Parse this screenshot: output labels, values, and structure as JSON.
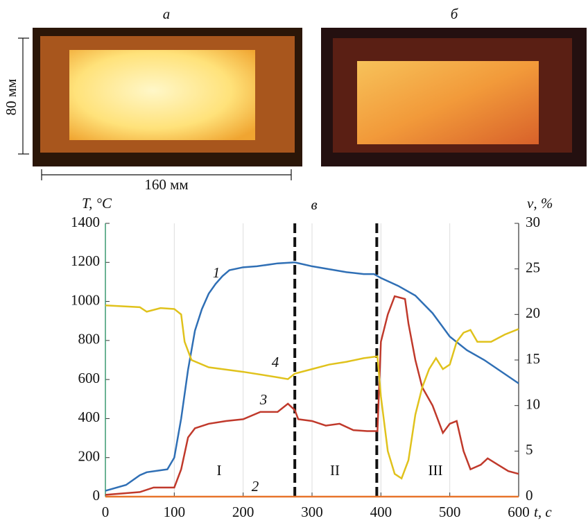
{
  "figure": {
    "panel_labels": [
      "а",
      "б"
    ],
    "dimension_labels": [
      "80 мм",
      "160 мм"
    ]
  },
  "chart_data": {
    "type": "line",
    "panel_label": "в",
    "y_label": "T, °C",
    "y2_label": "ν, %",
    "x_label": "t, с",
    "xlim": [
      0,
      600
    ],
    "xticks": [
      0,
      100,
      200,
      300,
      400,
      500,
      600
    ],
    "ylim": [
      0,
      1400
    ],
    "yticks": [
      0,
      200,
      400,
      600,
      800,
      1000,
      1200,
      1400
    ],
    "y2lim": [
      0,
      30
    ],
    "y2ticks": [
      0,
      5,
      10,
      15,
      20,
      25,
      30
    ],
    "grid": true,
    "phase_boundaries": [
      275,
      394
    ],
    "annotations": [
      "1",
      "2",
      "3",
      "4",
      "I",
      "II",
      "III"
    ],
    "series": [
      {
        "name": "1",
        "color": "#2f6fb5",
        "axis": "y",
        "x": [
          0,
          30,
          50,
          60,
          80,
          90,
          100,
          110,
          120,
          130,
          140,
          150,
          160,
          170,
          180,
          200,
          220,
          250,
          275,
          300,
          325,
          350,
          375,
          390,
          400,
          425,
          450,
          475,
          500,
          525,
          550,
          575,
          600
        ],
        "values": [
          30,
          60,
          110,
          125,
          135,
          140,
          200,
          400,
          650,
          850,
          960,
          1040,
          1090,
          1130,
          1160,
          1175,
          1180,
          1195,
          1200,
          1180,
          1165,
          1150,
          1140,
          1140,
          1120,
          1080,
          1030,
          940,
          820,
          750,
          700,
          640,
          580
        ]
      },
      {
        "name": "2",
        "color": "#e8742a",
        "axis": "y2",
        "x": [
          0,
          600
        ],
        "values": [
          0,
          0
        ]
      },
      {
        "name": "3",
        "color": "#c0392b",
        "axis": "y2",
        "x": [
          0,
          50,
          70,
          100,
          110,
          120,
          130,
          150,
          175,
          200,
          225,
          250,
          265,
          275,
          280,
          300,
          320,
          340,
          360,
          380,
          395,
          400,
          410,
          420,
          435,
          440,
          450,
          460,
          475,
          490,
          500,
          510,
          520,
          530,
          545,
          555,
          570,
          585,
          600
        ],
        "values": [
          0.2,
          0.5,
          1,
          1,
          3,
          6.5,
          7.5,
          8,
          8.3,
          8.5,
          9.3,
          9.3,
          10.2,
          9.5,
          8.5,
          8.3,
          7.8,
          8,
          7.3,
          7.2,
          7.2,
          17,
          20,
          22,
          21.7,
          19,
          15,
          12,
          10,
          7,
          8,
          8.3,
          5,
          3,
          3.5,
          4.2,
          3.5,
          2.8,
          2.5
        ]
      },
      {
        "name": "4",
        "color": "#e0c21c",
        "axis": "y2",
        "x": [
          0,
          50,
          60,
          80,
          100,
          110,
          115,
          125,
          150,
          200,
          250,
          265,
          275,
          300,
          325,
          350,
          375,
          395,
          400,
          410,
          420,
          430,
          440,
          450,
          460,
          470,
          480,
          490,
          500,
          510,
          520,
          530,
          540,
          560,
          580,
          600
        ],
        "values": [
          21,
          20.8,
          20.3,
          20.7,
          20.6,
          20,
          17,
          15,
          14.2,
          13.7,
          13.1,
          12.9,
          13.5,
          14,
          14.5,
          14.8,
          15.2,
          15.4,
          11,
          5,
          2.5,
          2,
          4,
          9,
          12,
          14,
          15.2,
          14,
          14.5,
          17,
          18,
          18.3,
          17,
          17,
          17.8,
          18.4
        ]
      }
    ]
  }
}
